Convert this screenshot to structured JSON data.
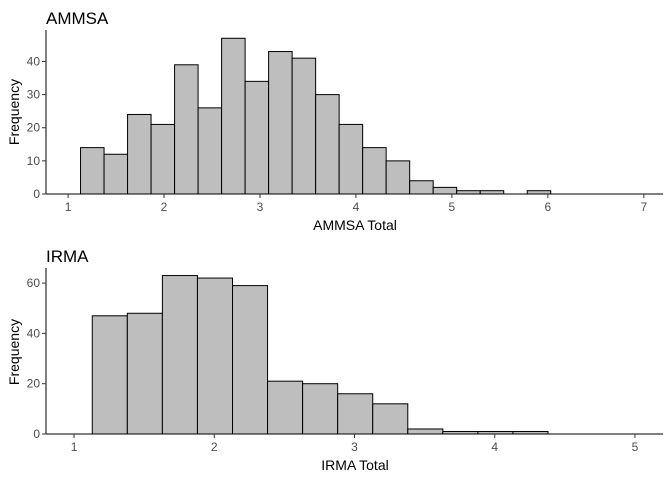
{
  "chart_data": [
    {
      "type": "bar",
      "title": "AMMSA",
      "xlabel": "AMMSA Total",
      "ylabel": "Frequency",
      "xlim": [
        0.77,
        7.2
      ],
      "ylim": [
        0,
        49.5
      ],
      "xticks": [
        1,
        2,
        3,
        4,
        5,
        6,
        7
      ],
      "yticks": [
        0,
        10,
        20,
        30,
        40
      ],
      "bin_edges": [
        1.13,
        1.375,
        1.62,
        1.865,
        2.11,
        2.355,
        2.6,
        2.845,
        3.09,
        3.335,
        3.58,
        3.825,
        4.07,
        4.315,
        4.56,
        4.805,
        5.05,
        5.295,
        5.54,
        5.785,
        6.03,
        6.275,
        6.52,
        6.765,
        6.87
      ],
      "values": [
        14,
        12,
        24,
        21,
        39,
        26,
        47,
        34,
        43,
        41,
        30,
        21,
        14,
        10,
        4,
        2,
        1,
        1,
        0,
        1,
        0,
        0,
        0,
        0
      ],
      "bar_color": "#bebebe",
      "grid": false
    },
    {
      "type": "bar",
      "title": "IRMA",
      "xlabel": "IRMA Total",
      "ylabel": "Frequency",
      "xlim": [
        0.8,
        5.2
      ],
      "ylim": [
        0,
        66
      ],
      "xticks": [
        1,
        2,
        3,
        4,
        5
      ],
      "yticks": [
        0,
        20,
        40,
        60
      ],
      "bin_edges": [
        1.13,
        1.38,
        1.63,
        1.88,
        2.13,
        2.38,
        2.63,
        2.88,
        3.13,
        3.38,
        3.63,
        3.88,
        4.13,
        4.38,
        4.63,
        4.88
      ],
      "values": [
        47,
        48,
        63,
        62,
        59,
        21,
        20,
        16,
        12,
        2,
        1,
        1,
        1,
        0,
        0
      ],
      "bar_color": "#bebebe",
      "grid": false
    }
  ]
}
